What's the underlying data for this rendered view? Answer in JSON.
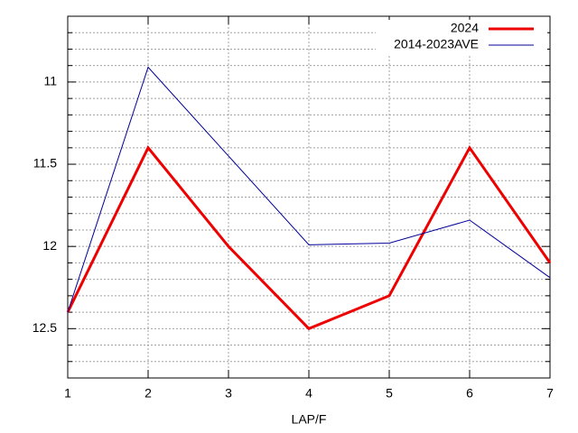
{
  "chart_data": {
    "type": "line",
    "xlabel": "LAP/F",
    "x": [
      1,
      2,
      3,
      4,
      5,
      6,
      7
    ],
    "series": [
      {
        "name": "2024",
        "color": "#ee0000",
        "width": 3,
        "values": [
          12.4,
          11.4,
          12.0,
          12.5,
          12.3,
          11.4,
          12.1
        ]
      },
      {
        "name": "2014-2023AVE",
        "color": "#000099",
        "width": 1,
        "values": [
          12.4,
          10.91,
          11.45,
          11.99,
          11.98,
          11.84,
          12.19
        ]
      }
    ],
    "xlim": [
      1,
      7
    ],
    "xticks": [
      1,
      2,
      3,
      4,
      5,
      6,
      7
    ],
    "ylim": [
      12.8,
      10.6
    ],
    "yticks": [
      11,
      11.5,
      12,
      12.5
    ],
    "y_minor_ticks": [
      10.7,
      10.8,
      10.9,
      11.1,
      11.2,
      11.3,
      11.4,
      11.6,
      11.7,
      11.8,
      11.9,
      12.1,
      12.2,
      12.3,
      12.4,
      12.6,
      12.7
    ],
    "grid": true,
    "legend": "top-right"
  }
}
